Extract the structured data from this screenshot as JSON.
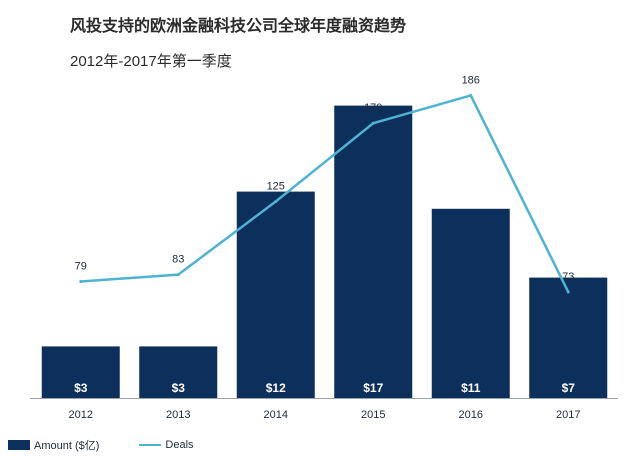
{
  "page": {
    "title": "风投支持的欧洲金融科技公司全球年度融资趋势",
    "subtitle": "2012年-2017年第一季度"
  },
  "chart_data": {
    "type": "bar",
    "categories": [
      "2012",
      "2013",
      "2014",
      "2015",
      "2016",
      "2017"
    ],
    "series": [
      {
        "name": "Amount ($亿)",
        "kind": "bar",
        "values": [
          3,
          3,
          12,
          17,
          11,
          7
        ],
        "labels": [
          "$3",
          "$3",
          "$12",
          "$17",
          "$11",
          "$7"
        ]
      },
      {
        "name": "Deals",
        "kind": "line",
        "values": [
          79,
          83,
          125,
          170,
          186,
          73
        ],
        "labels": [
          "79",
          "83",
          "125",
          "170",
          "186",
          "73"
        ]
      }
    ],
    "xlabel": "",
    "ylabel": "",
    "legend": "bottom-left",
    "grid": false,
    "colors": {
      "bar": "#0d2f5c",
      "line": "#4eb3d3"
    }
  }
}
